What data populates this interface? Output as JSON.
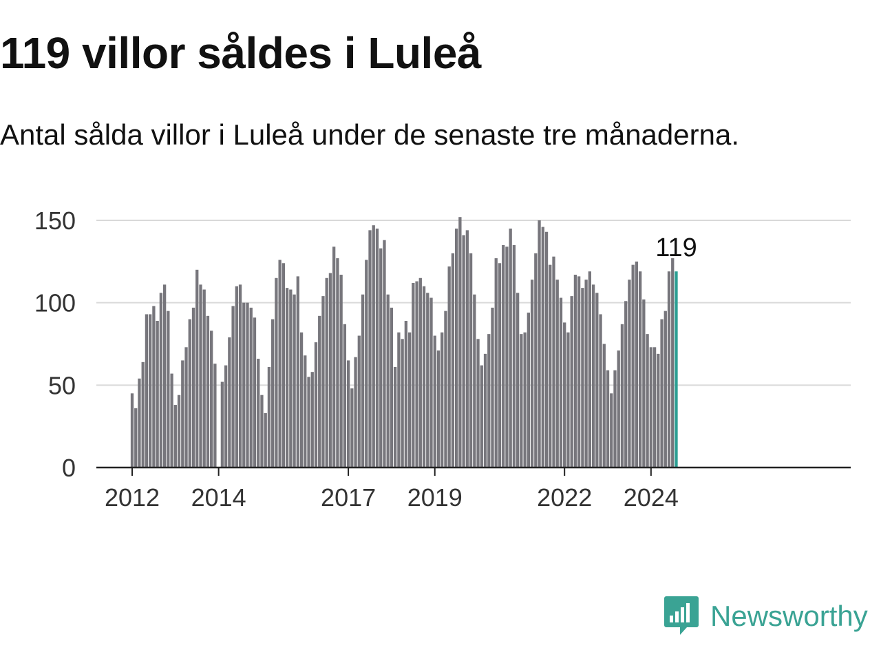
{
  "title": "119 villor såldes i Luleå",
  "subtitle": "Antal sålda villor i Luleå under de senaste tre månaderna.",
  "brand": {
    "name": "Newsworthy",
    "icon": "bar-chart-speech-bubble-icon",
    "color": "#3aa394"
  },
  "colors": {
    "bar": "#77767c",
    "highlight": "#2b9f93",
    "grid": "#d9d9d9",
    "axis": "#222222"
  },
  "chart_data": {
    "type": "bar",
    "title": "Antal sålda villor i Luleå under de senaste tre månaderna",
    "xlabel": "",
    "ylabel": "",
    "ylim": [
      0,
      150
    ],
    "yticks": [
      0,
      50,
      100,
      150
    ],
    "xticks": [
      {
        "label": "2012",
        "index": 0
      },
      {
        "label": "2014",
        "index": 24
      },
      {
        "label": "2017",
        "index": 60
      },
      {
        "label": "2019",
        "index": 84
      },
      {
        "label": "2022",
        "index": 120
      },
      {
        "label": "2024",
        "index": 144
      }
    ],
    "start": "2012-01",
    "values": [
      45,
      36,
      54,
      64,
      93,
      93,
      98,
      89,
      106,
      111,
      95,
      57,
      38,
      44,
      65,
      73,
      90,
      97,
      120,
      111,
      108,
      92,
      83,
      63,
      0,
      52,
      62,
      79,
      98,
      110,
      111,
      100,
      100,
      97,
      91,
      66,
      44,
      33,
      61,
      90,
      115,
      126,
      124,
      109,
      108,
      105,
      116,
      82,
      68,
      55,
      58,
      76,
      92,
      104,
      115,
      118,
      134,
      127,
      117,
      87,
      65,
      48,
      67,
      80,
      105,
      126,
      144,
      147,
      145,
      133,
      138,
      105,
      97,
      61,
      82,
      78,
      89,
      82,
      112,
      113,
      115,
      110,
      106,
      103,
      80,
      71,
      82,
      95,
      122,
      130,
      145,
      152,
      141,
      144,
      130,
      105,
      78,
      62,
      69,
      81,
      97,
      127,
      124,
      135,
      134,
      145,
      135,
      106,
      81,
      82,
      94,
      114,
      130,
      150,
      146,
      143,
      123,
      128,
      114,
      103,
      88,
      82,
      104,
      117,
      116,
      109,
      114,
      119,
      111,
      106,
      93,
      75,
      59,
      45,
      59,
      71,
      87,
      101,
      114,
      123,
      125,
      119,
      102,
      81,
      73,
      73,
      69,
      90,
      95,
      119,
      127,
      119
    ],
    "highlight_index": 151,
    "annotation": {
      "label": "119",
      "index": 151
    }
  }
}
